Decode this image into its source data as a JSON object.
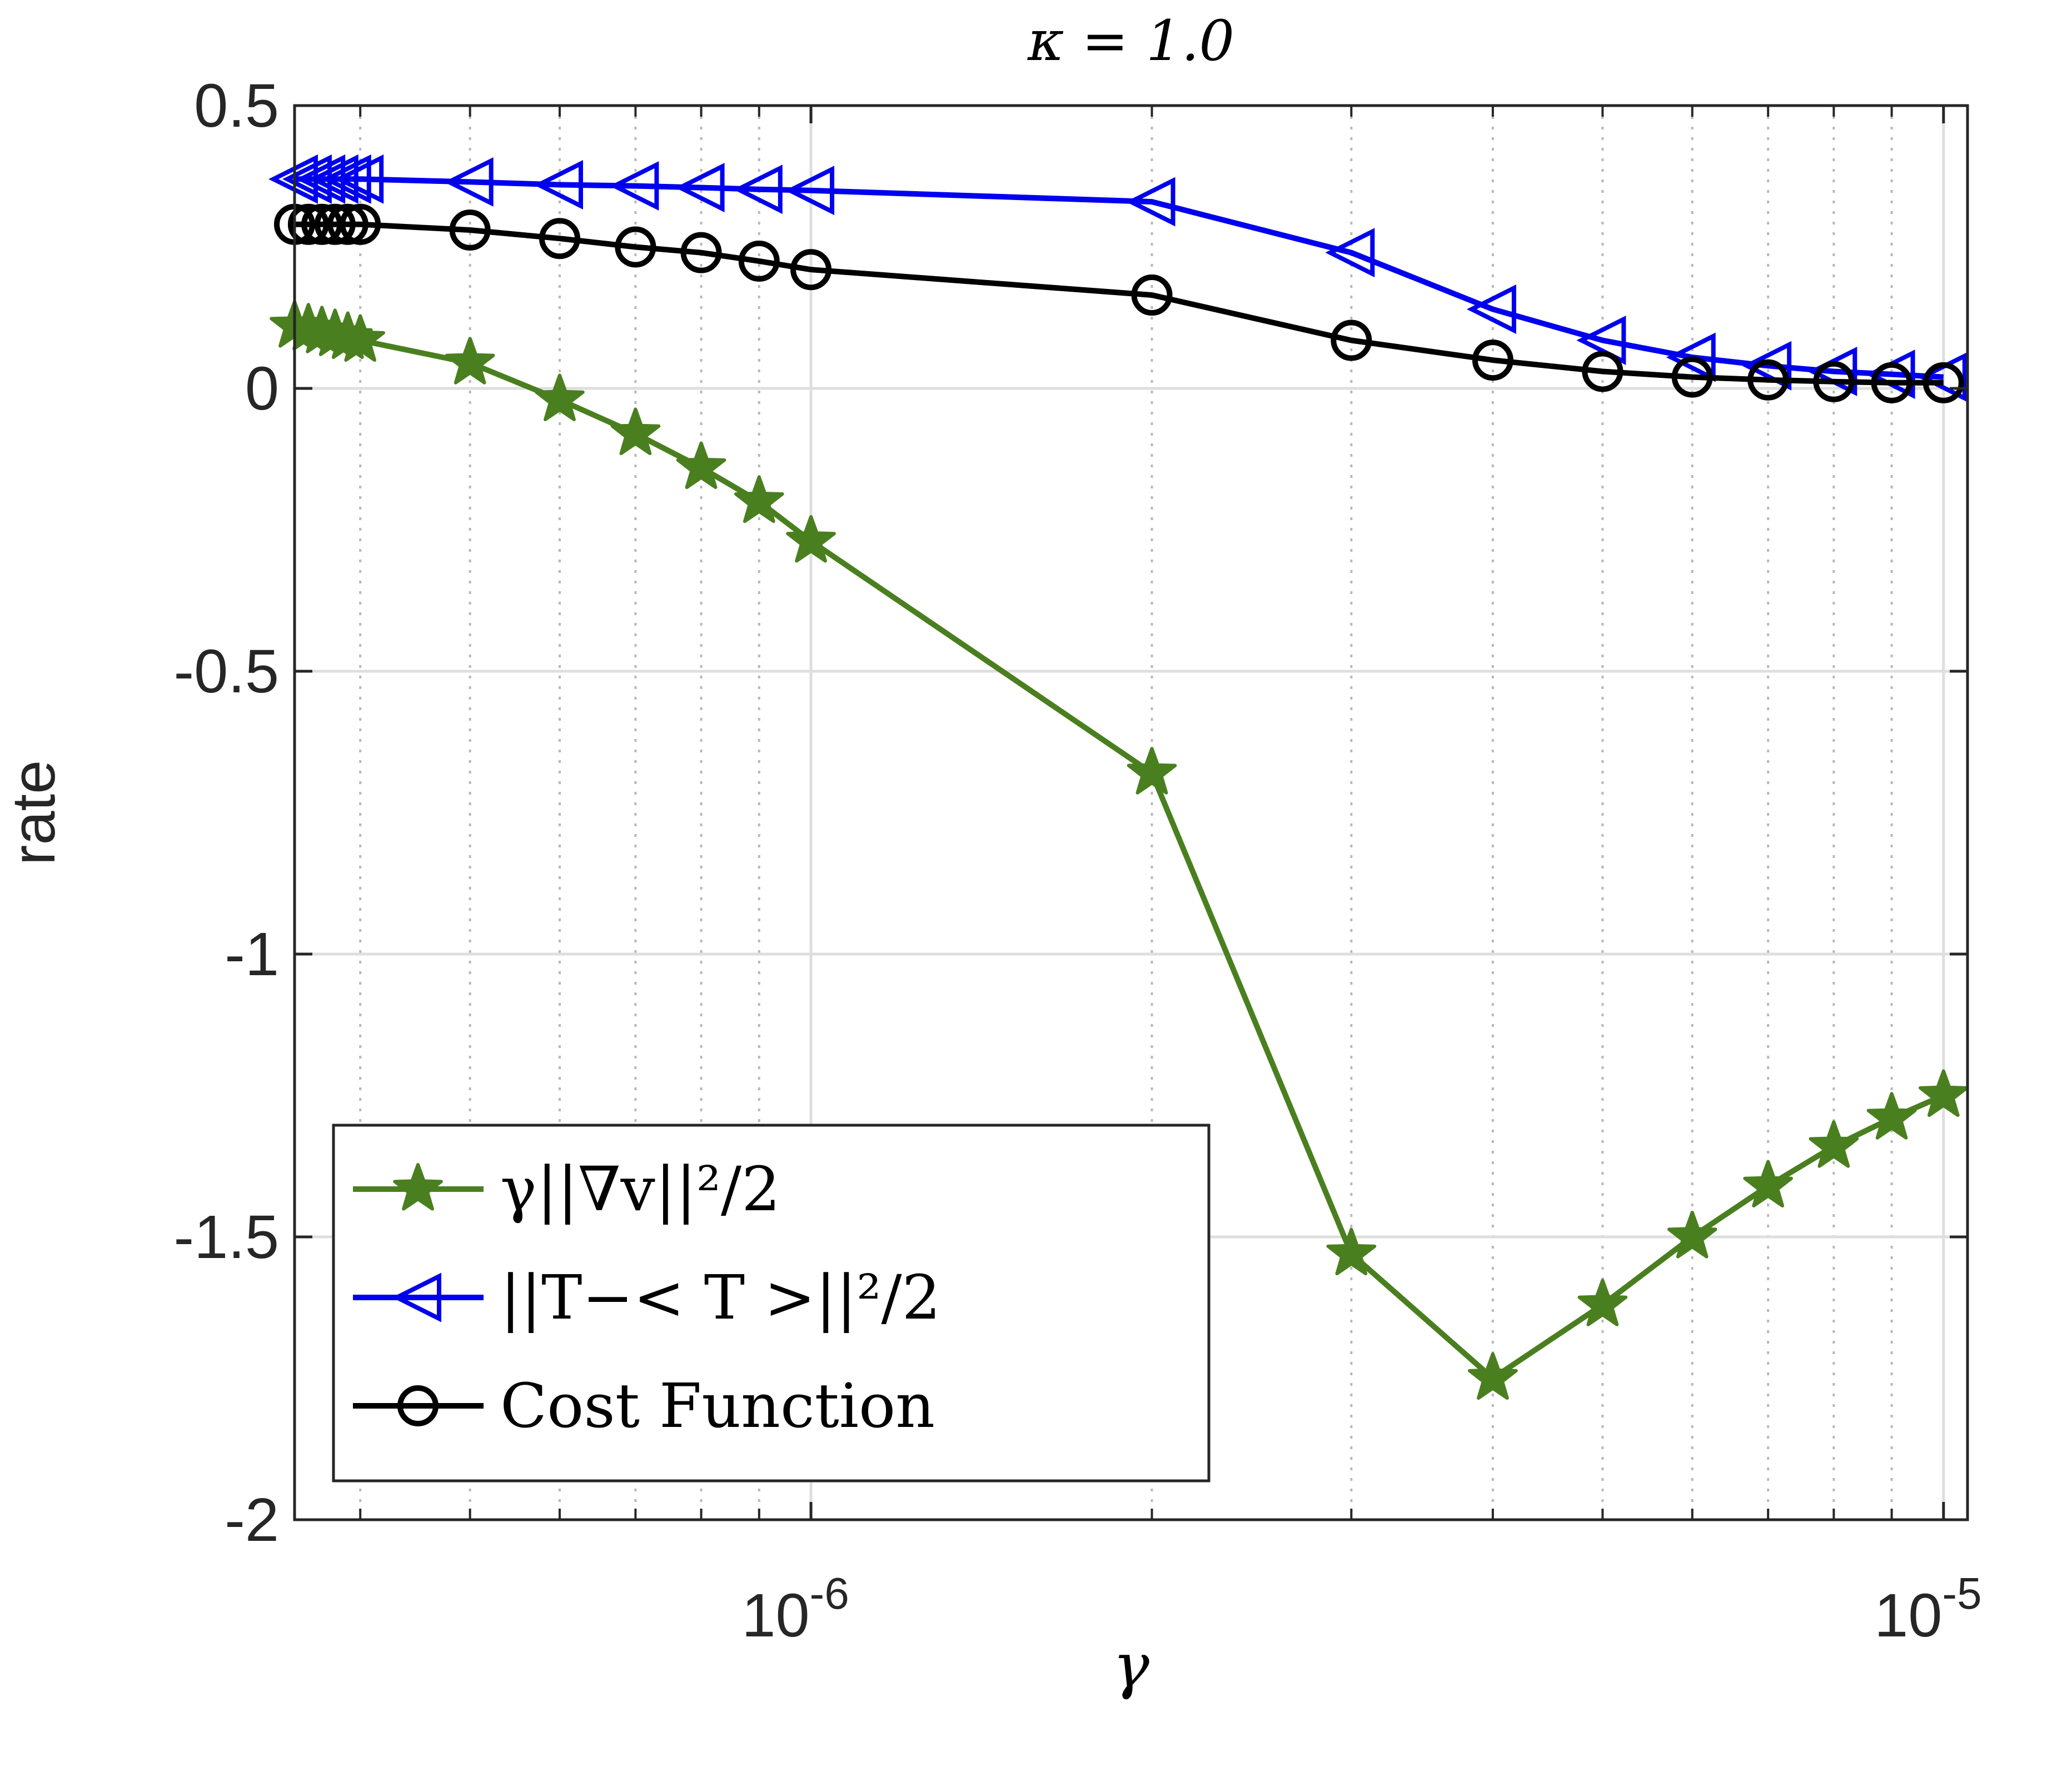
{
  "chart_data": {
    "type": "line",
    "title": "κ = 1.0",
    "xlabel": "γ",
    "ylabel": "rate",
    "xscale": "log",
    "xlim": [
      3.5e-07,
      1.05e-05
    ],
    "ylim": [
      -2,
      0.5
    ],
    "grid": true,
    "minor_grid": true,
    "legend_position": "bottom-left",
    "y_ticks": [
      {
        "value": 0.5,
        "label": "0.5"
      },
      {
        "value": 0,
        "label": "0"
      },
      {
        "value": -0.5,
        "label": "-0.5"
      },
      {
        "value": -1,
        "label": "-1"
      },
      {
        "value": -1.5,
        "label": "-1.5"
      },
      {
        "value": -2,
        "label": "-2"
      }
    ],
    "x_ticks": [
      {
        "value": 1e-06,
        "base": "10",
        "exponent": "-6"
      },
      {
        "value": 1e-05,
        "base": "10",
        "exponent": "-5"
      }
    ],
    "x": [
      3.5e-07,
      3.6e-07,
      3.7e-07,
      3.8e-07,
      3.9e-07,
      4e-07,
      5e-07,
      6e-07,
      7e-07,
      8e-07,
      9e-07,
      1e-06,
      2e-06,
      3e-06,
      4e-06,
      5e-06,
      6e-06,
      7e-06,
      8e-06,
      9e-06,
      1e-05
    ],
    "series": [
      {
        "name": "γ||∇v||²/2",
        "color": "#4a7f1f",
        "marker": "star",
        "values": [
          0.11,
          0.105,
          0.1,
          0.095,
          0.09,
          0.085,
          0.045,
          -0.02,
          -0.08,
          -0.14,
          -0.2,
          -0.27,
          -0.68,
          -1.53,
          -1.75,
          -1.62,
          -1.5,
          -1.41,
          -1.34,
          -1.29,
          -1.25
        ]
      },
      {
        "name": "||T-<T>||²/2",
        "color": "#0000ee",
        "marker": "triangle-left",
        "values": [
          0.37,
          0.37,
          0.37,
          0.37,
          0.37,
          0.37,
          0.365,
          0.36,
          0.358,
          0.355,
          0.352,
          0.35,
          0.33,
          0.24,
          0.14,
          0.085,
          0.055,
          0.04,
          0.03,
          0.025,
          0.02
        ]
      },
      {
        "name": "Cost Function",
        "color": "#000000",
        "marker": "circle",
        "values": [
          0.29,
          0.29,
          0.29,
          0.29,
          0.29,
          0.29,
          0.28,
          0.265,
          0.25,
          0.24,
          0.225,
          0.21,
          0.165,
          0.085,
          0.05,
          0.03,
          0.02,
          0.015,
          0.012,
          0.01,
          0.01
        ]
      }
    ],
    "legend": [
      {
        "label": "γ||∇v||²/2",
        "series_index": 0
      },
      {
        "label": "||T−< T >||²/2",
        "series_index": 1
      },
      {
        "label": "Cost Function",
        "series_index": 2
      }
    ]
  }
}
